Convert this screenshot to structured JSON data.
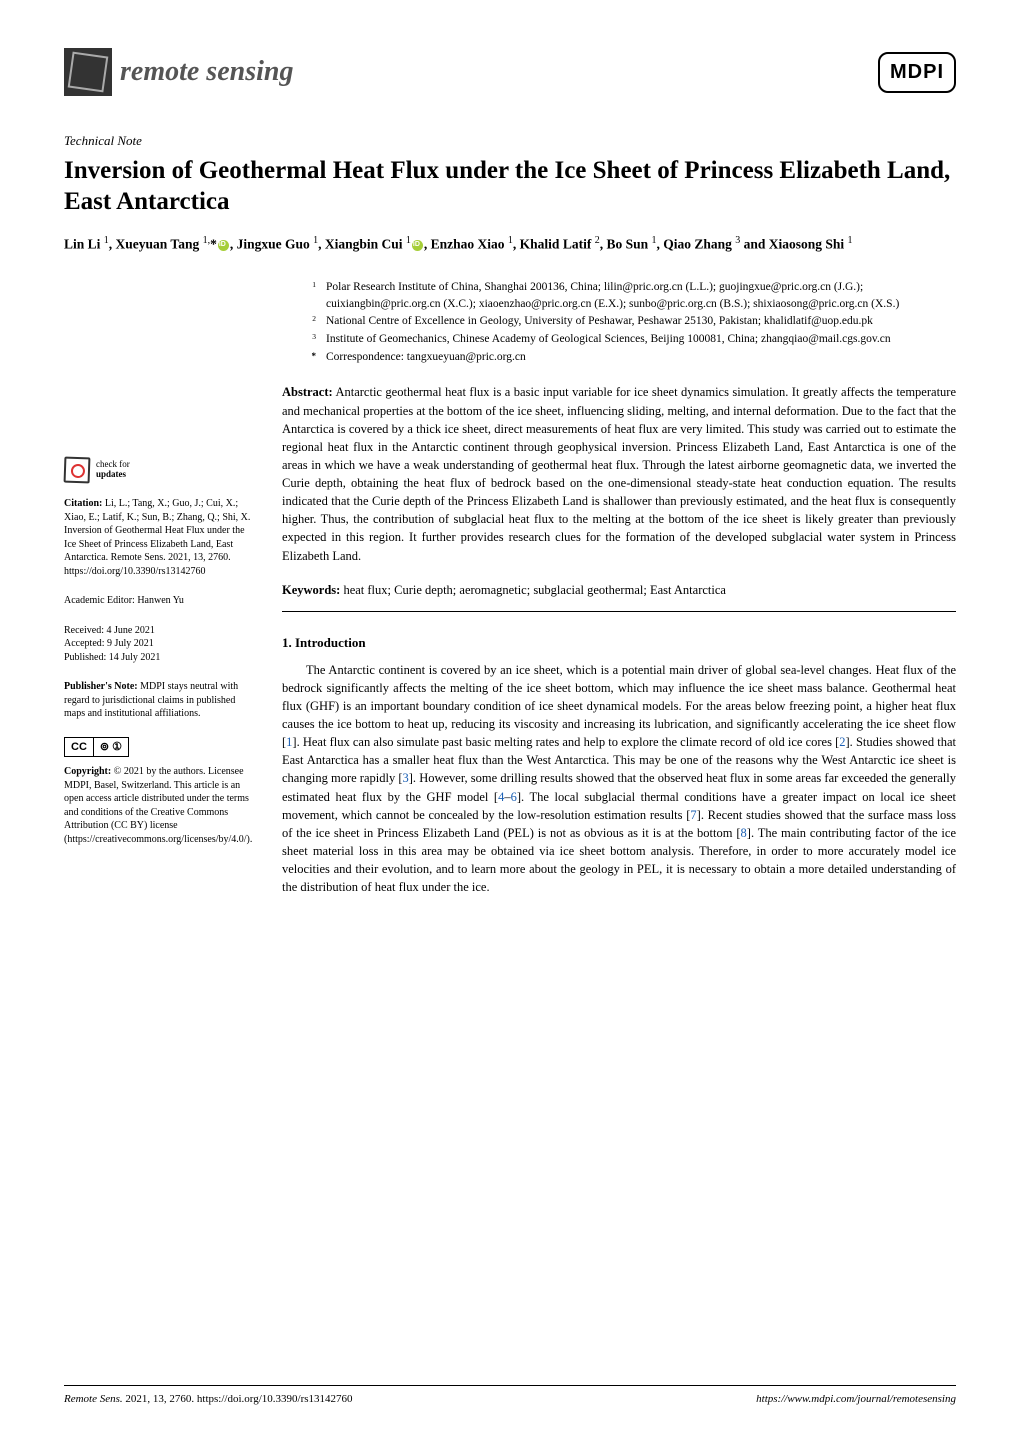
{
  "journal": {
    "name": "remote sensing",
    "publisher_logo": "MDPI"
  },
  "article": {
    "type": "Technical Note",
    "title": "Inversion of Geothermal Heat Flux under the Ice Sheet of Princess Elizabeth Land, East Antarctica",
    "authors_html": "Lin Li <sup>1</sup>, Xueyuan Tang <sup>1,</sup>*{orcid}, Jingxue Guo <sup>1</sup>, Xiangbin Cui <sup>1</sup>{orcid}, Enzhao Xiao <sup>1</sup>, Khalid Latif <sup>2</sup>, Bo Sun <sup>1</sup>, Qiao Zhang <sup>3</sup> and Xiaosong Shi <sup>1</sup>"
  },
  "affiliations": [
    {
      "num": "1",
      "text": "Polar Research Institute of China, Shanghai 200136, China; lilin@pric.org.cn (L.L.); guojingxue@pric.org.cn (J.G.); cuixiangbin@pric.org.cn (X.C.); xiaoenzhao@pric.org.cn (E.X.); sunbo@pric.org.cn (B.S.); shixiaosong@pric.org.cn (X.S.)"
    },
    {
      "num": "2",
      "text": "National Centre of Excellence in Geology, University of Peshawar, Peshawar 25130, Pakistan; khalidlatif@uop.edu.pk"
    },
    {
      "num": "3",
      "text": "Institute of Geomechanics, Chinese Academy of Geological Sciences, Beijing 100081, China; zhangqiao@mail.cgs.gov.cn"
    },
    {
      "num": "*",
      "text": "Correspondence: tangxueyuan@pric.org.cn"
    }
  ],
  "abstract": {
    "label": "Abstract:",
    "text": "Antarctic geothermal heat flux is a basic input variable for ice sheet dynamics simulation. It greatly affects the temperature and mechanical properties at the bottom of the ice sheet, influencing sliding, melting, and internal deformation. Due to the fact that the Antarctica is covered by a thick ice sheet, direct measurements of heat flux are very limited. This study was carried out to estimate the regional heat flux in the Antarctic continent through geophysical inversion. Princess Elizabeth Land, East Antarctica is one of the areas in which we have a weak understanding of geothermal heat flux. Through the latest airborne geomagnetic data, we inverted the Curie depth, obtaining the heat flux of bedrock based on the one-dimensional steady-state heat conduction equation. The results indicated that the Curie depth of the Princess Elizabeth Land is shallower than previously estimated, and the heat flux is consequently higher. Thus, the contribution of subglacial heat flux to the melting at the bottom of the ice sheet is likely greater than previously expected in this region. It further provides research clues for the formation of the developed subglacial water system in Princess Elizabeth Land."
  },
  "keywords": {
    "label": "Keywords:",
    "text": "heat flux; Curie depth; aeromagnetic; subglacial geothermal; East Antarctica"
  },
  "section1": {
    "heading": "1. Introduction",
    "para": "The Antarctic continent is covered by an ice sheet, which is a potential main driver of global sea-level changes. Heat flux of the bedrock significantly affects the melting of the ice sheet bottom, which may influence the ice sheet mass balance. Geothermal heat flux (GHF) is an important boundary condition of ice sheet dynamical models. For the areas below freezing point, a higher heat flux causes the ice bottom to heat up, reducing its viscosity and increasing its lubrication, and significantly accelerating the ice sheet flow [{r1}]. Heat flux can also simulate past basic melting rates and help to explore the climate record of old ice cores [{r2}]. Studies showed that East Antarctica has a smaller heat flux than the West Antarctica. This may be one of the reasons why the West Antarctic ice sheet is changing more rapidly [{r3}]. However, some drilling results showed that the observed heat flux in some areas far exceeded the generally estimated heat flux by the GHF model [{r4}–{r6}]. The local subglacial thermal conditions have a greater impact on local ice sheet movement, which cannot be concealed by the low-resolution estimation results [{r7}]. Recent studies showed that the surface mass loss of the ice sheet in Princess Elizabeth Land (PEL) is not as obvious as it is at the bottom [{r8}]. The main contributing factor of the ice sheet material loss in this area may be obtained via ice sheet bottom analysis. Therefore, in order to more accurately model ice velocities and their evolution, and to learn more about the geology in PEL, it is necessary to obtain a more detailed understanding of the distribution of heat flux under the ice."
  },
  "refs": {
    "r1": "1",
    "r2": "2",
    "r3": "3",
    "r4": "4",
    "r6": "6",
    "r7": "7",
    "r8": "8"
  },
  "sidebar": {
    "check_updates_line1": "check for",
    "check_updates_line2": "updates",
    "citation_label": "Citation:",
    "citation": "Li, L.; Tang, X.; Guo, J.; Cui, X.; Xiao, E.; Latif, K.; Sun, B.; Zhang, Q.; Shi, X. Inversion of Geothermal Heat Flux under the Ice Sheet of Princess Elizabeth Land, East Antarctica. Remote Sens. 2021, 13, 2760. https://doi.org/10.3390/rs13142760",
    "editor_label": "Academic Editor:",
    "editor": "Hanwen Yu",
    "received_label": "Received:",
    "received": "4 June 2021",
    "accepted_label": "Accepted:",
    "accepted": "9 July 2021",
    "published_label": "Published:",
    "published": "14 July 2021",
    "pubnote_label": "Publisher's Note:",
    "pubnote": "MDPI stays neutral with regard to jurisdictional claims in published maps and institutional affiliations.",
    "cc_left": "CC",
    "cc_right": "⊚ ①",
    "copyright_label": "Copyright:",
    "copyright": "© 2021 by the authors. Licensee MDPI, Basel, Switzerland. This article is an open access article distributed under the terms and conditions of the Creative Commons Attribution (CC BY) license (https://creativecommons.org/licenses/by/4.0/)."
  },
  "footer": {
    "left_journal": "Remote Sens.",
    "left_rest": "2021, 13, 2760. https://doi.org/10.3390/rs13142760",
    "right": "https://www.mdpi.com/journal/remotesensing"
  },
  "colors": {
    "text": "#000000",
    "link": "#0066cc",
    "orcid": "#a6ce39",
    "background": "#ffffff"
  },
  "typography": {
    "body_font": "Palatino Linotype",
    "title_fontsize_pt": 19,
    "body_fontsize_pt": 9.5,
    "sidebar_fontsize_pt": 7.5
  }
}
